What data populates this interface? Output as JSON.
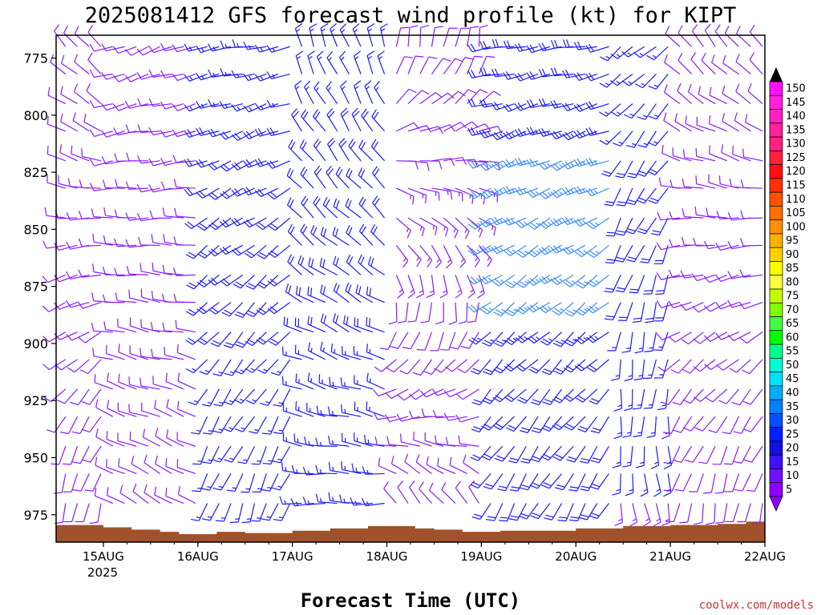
{
  "title": "2025081412 GFS forecast wind profile (kt) for KIPT",
  "credit": "coolwx.com/models",
  "colors": {
    "barb_light": "#8a1aff",
    "barb_mid": "#1a1aff",
    "barb_strong": "#3a8cff",
    "terrain": "#a0522d"
  },
  "chart_data": {
    "type": "wind-barb profile",
    "xlabel": "Forecast Time (UTC)",
    "ylabel": "",
    "y_axis_inverted": true,
    "ylim": [
      987,
      765
    ],
    "xlim_hours_from_15AUG": [
      -0.5,
      7.0
    ],
    "ytick_labels": [
      "775",
      "800",
      "825",
      "850",
      "875",
      "900",
      "925",
      "950",
      "975"
    ],
    "xtick_labels": [
      "15AUG",
      "16AUG",
      "17AUG",
      "18AUG",
      "19AUG",
      "20AUG",
      "21AUG",
      "22AUG"
    ],
    "xtick_year_label": "2025",
    "pressure_levels": [
      770,
      782,
      795,
      807,
      820,
      832,
      845,
      857,
      870,
      882,
      895,
      907,
      920,
      932,
      945,
      957,
      970
    ],
    "time_step_hours": 3,
    "wind_segments": [
      {
        "start_day": 0.0,
        "end_day": 1.0,
        "dir_low": 300,
        "dir_high": 250,
        "spd_low": 10,
        "spd_high": 10
      },
      {
        "start_day": 1.0,
        "end_day": 2.1,
        "dir_low": 200,
        "dir_high": 260,
        "spd_low": 12,
        "spd_high": 22
      },
      {
        "start_day": 2.1,
        "end_day": 3.0,
        "dir_low": 270,
        "dir_high": 340,
        "spd_low": 12,
        "spd_high": 22
      },
      {
        "start_day": 3.0,
        "end_day": 4.0,
        "dir_low": 320,
        "dir_high": 10,
        "spd_low": 10,
        "spd_high": 15
      },
      {
        "start_day": 4.0,
        "end_day": 5.4,
        "dir_low": 210,
        "dir_high": 260,
        "spd_low": 15,
        "spd_high": 28
      },
      {
        "start_day": 5.4,
        "end_day": 6.0,
        "dir_low": 170,
        "dir_high": 230,
        "spd_low": 10,
        "spd_high": 22
      },
      {
        "start_day": 6.0,
        "end_day": 7.0,
        "dir_low": 190,
        "dir_high": 320,
        "spd_low": 8,
        "spd_high": 12
      }
    ],
    "surface_pressure": [
      {
        "day": -0.5,
        "p": 979.5
      },
      {
        "day": 0.0,
        "p": 980.5
      },
      {
        "day": 0.3,
        "p": 981.5
      },
      {
        "day": 0.6,
        "p": 982.5
      },
      {
        "day": 0.8,
        "p": 983.5
      },
      {
        "day": 1.0,
        "p": 983.5
      },
      {
        "day": 1.2,
        "p": 982.5
      },
      {
        "day": 1.5,
        "p": 983.0
      },
      {
        "day": 2.0,
        "p": 982.0
      },
      {
        "day": 2.4,
        "p": 981.0
      },
      {
        "day": 2.8,
        "p": 980.0
      },
      {
        "day": 3.0,
        "p": 980.0
      },
      {
        "day": 3.3,
        "p": 981.0
      },
      {
        "day": 3.5,
        "p": 981.5
      },
      {
        "day": 3.8,
        "p": 982.5
      },
      {
        "day": 4.2,
        "p": 982.0
      },
      {
        "day": 4.7,
        "p": 982.0
      },
      {
        "day": 5.0,
        "p": 981.0
      },
      {
        "day": 5.5,
        "p": 980.0
      },
      {
        "day": 6.0,
        "p": 979.5
      },
      {
        "day": 6.5,
        "p": 979.0
      },
      {
        "day": 6.8,
        "p": 978.0
      },
      {
        "day": 7.0,
        "p": 978.5
      }
    ],
    "colorbar": {
      "labels": [
        "150",
        "145",
        "140",
        "135",
        "130",
        "125",
        "120",
        "115",
        "110",
        "105",
        "100",
        "95",
        "90",
        "85",
        "80",
        "75",
        "70",
        "65",
        "60",
        "55",
        "50",
        "45",
        "40",
        "35",
        "30",
        "25",
        "20",
        "15",
        "10",
        "5"
      ],
      "colors": [
        "#ff10ff",
        "#ff20e0",
        "#ff20c0",
        "#ff20a0",
        "#ff2080",
        "#ff2040",
        "#ff1010",
        "#ff3000",
        "#ff5000",
        "#ff7000",
        "#ff9000",
        "#ffb000",
        "#ffd000",
        "#ffff00",
        "#ffff40",
        "#c0ff00",
        "#80ff00",
        "#40ff40",
        "#00ff00",
        "#00ff90",
        "#00ffd0",
        "#00e0ff",
        "#00b0ff",
        "#0080ff",
        "#0050ff",
        "#0020ff",
        "#1010e0",
        "#4010ff",
        "#7010ff",
        "#9000ff"
      ]
    }
  }
}
